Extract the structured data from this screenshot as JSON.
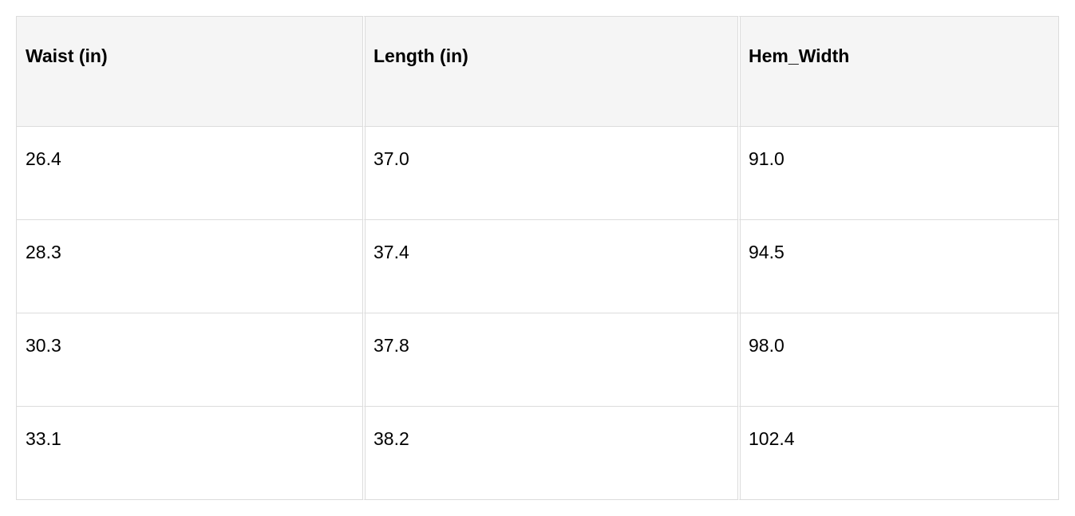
{
  "table": {
    "headers": [
      "Waist (in)",
      "Length (in)",
      "Hem_Width"
    ],
    "rows": [
      [
        "26.4",
        "37.0",
        "91.0"
      ],
      [
        "28.3",
        "37.4",
        "94.5"
      ],
      [
        "30.3",
        "37.8",
        "98.0"
      ],
      [
        "33.1",
        "38.2",
        "102.4"
      ]
    ]
  }
}
